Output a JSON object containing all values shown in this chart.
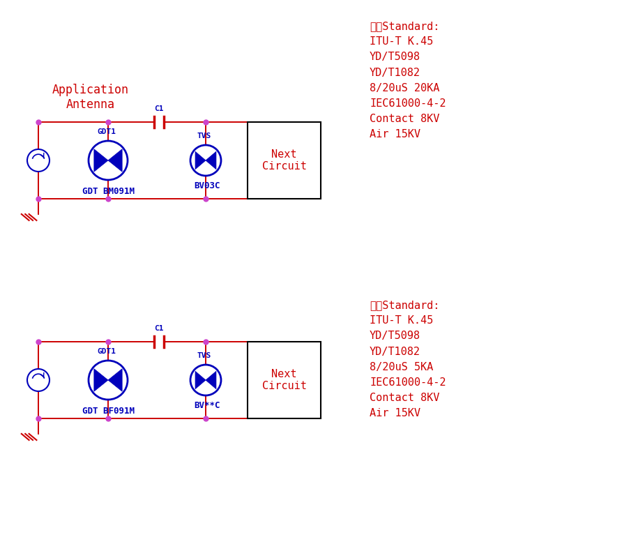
{
  "bg_color": "#ffffff",
  "line_color": "#cc0000",
  "node_color": "#cc44cc",
  "blue": "#0000bb",
  "circuit1": {
    "title": "Application\nAntenna",
    "gdt_label": "GDT BM091M",
    "tvs_label": "BV03C",
    "gdt1_label": "GDT1",
    "tvs1_label": "TVS",
    "c1_label": "C1"
  },
  "circuit2": {
    "gdt_label": "GDT BF091M",
    "tvs_label": "BV**C",
    "gdt1_label": "GDT1",
    "tvs1_label": "TVS",
    "c1_label": "C1"
  },
  "text1": "室外Standard:\nITU-T K.45\nYD/T5098\nYD/T1082\n8/20uS 20KA\nIEC61000-4-2\nContact 8KV\nAir 15KV",
  "text2": "室内Standard:\nITU-T K.45\nYD/T5098\nYD/T1082\n8/20uS 5KA\nIEC61000-4-2\nContact 8KV\nAir 15KV",
  "text_color": "#cc0000",
  "next_circuit_color": "#cc0000",
  "figw": 8.92,
  "figh": 7.7,
  "dpi": 100
}
